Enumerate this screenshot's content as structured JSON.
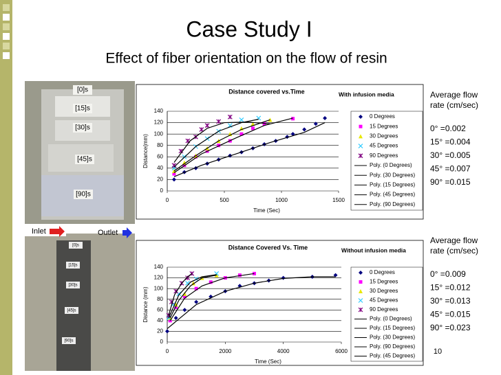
{
  "slide": {
    "title": "Case Study I",
    "subtitle": "Effect of fiber orientation on the flow of resin",
    "page_number": "10",
    "photo_top": {
      "labels": [
        "[0]s",
        "[15]s",
        "[30]s",
        "[45]s",
        "[90]s"
      ]
    },
    "photo_bottom": {
      "inlet": "Inlet",
      "outlet": "Outlet",
      "labels": [
        "[0]s",
        "[15]s",
        "[30]s",
        "[45]s",
        "[90]s"
      ]
    },
    "rates_top": {
      "heading": "Average flow rate (cm/sec)",
      "items": [
        "0° =0.002",
        "15° =0.004",
        "30° =0.005",
        "45° =0.007",
        "90° =0.015"
      ]
    },
    "rates_bottom": {
      "heading": "Average flow rate (cm/sec)",
      "items": [
        "0° =0.009",
        "15° =0.012",
        "30° =0.013",
        "45° =0.015",
        "90° =0.023"
      ]
    }
  },
  "chart_data": [
    {
      "type": "scatter",
      "title": "Distance covered vs.Time",
      "annotation": "With infusion media",
      "x_label": "Time (Sec)",
      "y_label": "Distance(mm)",
      "xlim": [
        0,
        1500
      ],
      "ylim": [
        0,
        140
      ],
      "xticks": [
        0,
        500,
        1000,
        1500
      ],
      "yticks": [
        0,
        20,
        40,
        60,
        80,
        100,
        120,
        140
      ],
      "series": [
        {
          "name": "0 Degrees",
          "color": "#000080",
          "marker": "diamond",
          "x": [
            60,
            150,
            250,
            350,
            450,
            550,
            650,
            750,
            850,
            950,
            1050,
            1100,
            1200,
            1300,
            1380
          ],
          "values": [
            20,
            33,
            40,
            48,
            55,
            62,
            68,
            75,
            82,
            88,
            95,
            100,
            108,
            118,
            128
          ]
        },
        {
          "name": "15 Degrees",
          "color": "#ff00ff",
          "marker": "square",
          "x": [
            60,
            150,
            250,
            350,
            450,
            550,
            650,
            750,
            850,
            1100
          ],
          "values": [
            30,
            45,
            60,
            70,
            80,
            88,
            100,
            110,
            118,
            127
          ]
        },
        {
          "name": "30 Degrees",
          "color": "#e8e800",
          "marker": "triangle",
          "x": [
            60,
            150,
            250,
            350,
            450,
            550,
            650,
            750,
            900
          ],
          "values": [
            35,
            50,
            62,
            75,
            88,
            100,
            110,
            118,
            125
          ]
        },
        {
          "name": "45 Degrees",
          "color": "#33ccff",
          "marker": "x",
          "x": [
            60,
            150,
            250,
            350,
            450,
            550,
            650,
            800
          ],
          "values": [
            40,
            60,
            78,
            92,
            105,
            115,
            125,
            128
          ]
        },
        {
          "name": "90 Degrees",
          "color": "#800080",
          "marker": "star",
          "x": [
            60,
            120,
            180,
            250,
            300,
            350,
            450,
            550
          ],
          "values": [
            45,
            70,
            88,
            95,
            108,
            115,
            122,
            130
          ]
        },
        {
          "name": "Poly. (0 Degrees)",
          "color": "#000000",
          "marker": "line",
          "x": [
            60,
            300,
            600,
            900,
            1200,
            1380
          ],
          "values": [
            25,
            45,
            65,
            85,
            103,
            120
          ]
        },
        {
          "name": "Poly. (30 Degrees)",
          "color": "#000000",
          "marker": "line",
          "x": [
            60,
            250,
            450,
            650,
            900
          ],
          "values": [
            35,
            62,
            88,
            108,
            125
          ]
        },
        {
          "name": "Poly. (15 Degrees)",
          "color": "#000000",
          "marker": "line",
          "x": [
            60,
            300,
            600,
            850,
            1100
          ],
          "values": [
            32,
            65,
            93,
            115,
            128
          ]
        },
        {
          "name": "Poly. (45 Degrees)",
          "color": "#000000",
          "marker": "line",
          "x": [
            60,
            250,
            450,
            650,
            800
          ],
          "values": [
            42,
            78,
            105,
            120,
            126
          ]
        },
        {
          "name": "Poly. (90 Degrees)",
          "color": "#000000",
          "marker": "line",
          "x": [
            60,
            200,
            350,
            500,
            700,
            900
          ],
          "values": [
            50,
            88,
            110,
            120,
            121,
            118
          ]
        }
      ]
    },
    {
      "type": "scatter",
      "title": "Distance Covered Vs. Time",
      "annotation": "Without infusion media",
      "x_label": "Time (Sec)",
      "y_label": "Distance (mm)",
      "xlim": [
        0,
        6000
      ],
      "ylim": [
        0,
        140
      ],
      "xticks": [
        0,
        2000,
        4000,
        6000
      ],
      "yticks": [
        0,
        20,
        40,
        60,
        80,
        100,
        120,
        140
      ],
      "series": [
        {
          "name": "0 Degrees",
          "color": "#000080",
          "marker": "diamond",
          "x": [
            0,
            300,
            600,
            1000,
            1500,
            2000,
            2500,
            3000,
            3500,
            4000,
            5000,
            5800
          ],
          "values": [
            20,
            45,
            60,
            75,
            85,
            95,
            105,
            110,
            115,
            120,
            122,
            125
          ]
        },
        {
          "name": "15 Degrees",
          "color": "#ff00ff",
          "marker": "square",
          "x": [
            100,
            300,
            600,
            1000,
            1500,
            2000,
            2500,
            3000
          ],
          "values": [
            40,
            65,
            85,
            100,
            112,
            120,
            125,
            128
          ]
        },
        {
          "name": "30 Degrees",
          "color": "#e8e800",
          "marker": "triangle",
          "x": [
            100,
            300,
            600,
            900,
            1200,
            1700
          ],
          "values": [
            45,
            70,
            90,
            110,
            120,
            125
          ]
        },
        {
          "name": "45 Degrees",
          "color": "#33ccff",
          "marker": "x",
          "x": [
            50,
            200,
            400,
            700,
            1000,
            1700
          ],
          "values": [
            45,
            70,
            90,
            110,
            118,
            128
          ]
        },
        {
          "name": "90 Degrees",
          "color": "#800080",
          "marker": "star",
          "x": [
            50,
            150,
            300,
            500,
            700,
            850
          ],
          "values": [
            50,
            75,
            95,
            110,
            120,
            128
          ]
        },
        {
          "name": "Poly. (0 Degrees)",
          "color": "#000000",
          "marker": "line",
          "x": [
            0,
            1000,
            2000,
            3000,
            4000,
            5000,
            5800
          ],
          "values": [
            25,
            70,
            95,
            110,
            119,
            122,
            122
          ]
        },
        {
          "name": "Poly. (15 Degrees)",
          "color": "#000000",
          "marker": "line",
          "x": [
            100,
            600,
            1200,
            2000,
            3000
          ],
          "values": [
            40,
            82,
            105,
            120,
            128
          ]
        },
        {
          "name": "Poly. (30 Degrees)",
          "color": "#000000",
          "marker": "line",
          "x": [
            100,
            400,
            800,
            1200,
            1700
          ],
          "values": [
            45,
            78,
            105,
            120,
            125
          ]
        },
        {
          "name": "Poly. (90 Degrees)",
          "color": "#000000",
          "marker": "line",
          "x": [
            50,
            250,
            500,
            700,
            850
          ],
          "values": [
            50,
            88,
            110,
            122,
            128
          ]
        },
        {
          "name": "Poly. (45 Degrees)",
          "color": "#000000",
          "marker": "line",
          "x": [
            50,
            400,
            800,
            1200,
            1700
          ],
          "values": [
            45,
            88,
            112,
            122,
            126
          ]
        }
      ]
    }
  ]
}
